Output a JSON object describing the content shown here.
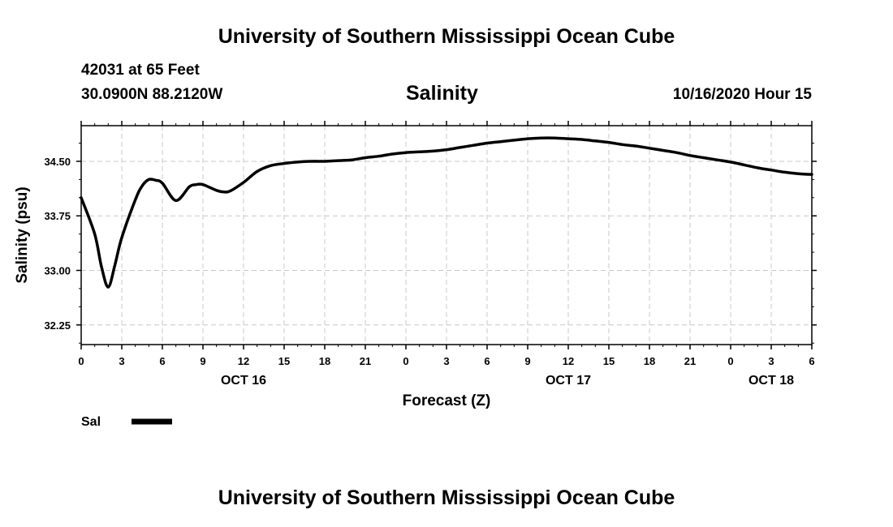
{
  "header": {
    "title": "University of Southern Mississippi Ocean Cube",
    "station": "42031 at 65 Feet",
    "location": "30.0900N 88.2120W",
    "variable": "Salinity",
    "run": "10/16/2020 Hour 15"
  },
  "footer": {
    "title": "University of Southern Mississippi Ocean Cube"
  },
  "colors": {
    "line": "#000000",
    "grid": "#c8c8c8",
    "background": "#ffffff"
  },
  "chart_data": {
    "type": "line",
    "title": "Salinity",
    "xlabel": "Forecast (Z)",
    "ylabel": "Salinity (psu)",
    "xlim": [
      0,
      54
    ],
    "ylim": [
      31.98,
      34.99
    ],
    "grid": true,
    "yticks": [
      32.25,
      33.0,
      33.75,
      34.5
    ],
    "ytick_labels": [
      "32.25",
      "33.00",
      "33.75",
      "34.50"
    ],
    "xticks": [
      0,
      3,
      6,
      9,
      12,
      15,
      18,
      21,
      24,
      27,
      30,
      33,
      36,
      39,
      42,
      45,
      48,
      51,
      54
    ],
    "xtick_labels": [
      "0",
      "3",
      "6",
      "9",
      "12",
      "15",
      "18",
      "21",
      "0",
      "3",
      "6",
      "9",
      "12",
      "15",
      "18",
      "21",
      "0",
      "3",
      "6"
    ],
    "date_labels": [
      {
        "x": 12,
        "label": "OCT 16"
      },
      {
        "x": 36,
        "label": "OCT 17"
      },
      {
        "x": 51,
        "label": "OCT 18"
      }
    ],
    "legend": {
      "label": "Sal",
      "placement": "bottom-left"
    },
    "series": [
      {
        "name": "Sal",
        "x": [
          0,
          1,
          1.5,
          2,
          2.5,
          3,
          4,
          4.5,
          5,
          5.5,
          6,
          7,
          8,
          8.5,
          9,
          10,
          10.5,
          11,
          12,
          13,
          14,
          15,
          16,
          17,
          18,
          19,
          20,
          21,
          22,
          23,
          24,
          25,
          26,
          27,
          28,
          29,
          30,
          31,
          32,
          33,
          34,
          35,
          36,
          37,
          38,
          39,
          40,
          41,
          42,
          43,
          44,
          45,
          46,
          47,
          48,
          49,
          50,
          51,
          52,
          53,
          54
        ],
        "values": [
          34.0,
          33.5,
          33.05,
          32.77,
          33.08,
          33.45,
          33.97,
          34.16,
          34.25,
          34.24,
          34.2,
          33.96,
          34.15,
          34.18,
          34.18,
          34.1,
          34.08,
          34.09,
          34.21,
          34.36,
          34.44,
          34.47,
          34.49,
          34.5,
          34.5,
          34.51,
          34.52,
          34.55,
          34.57,
          34.6,
          34.62,
          34.63,
          34.64,
          34.66,
          34.69,
          34.72,
          34.75,
          34.77,
          34.79,
          34.81,
          34.82,
          34.82,
          34.81,
          34.8,
          34.78,
          34.76,
          34.73,
          34.71,
          34.68,
          34.65,
          34.62,
          34.58,
          34.55,
          34.52,
          34.49,
          34.45,
          34.41,
          34.38,
          34.35,
          34.33,
          34.32
        ]
      }
    ]
  }
}
